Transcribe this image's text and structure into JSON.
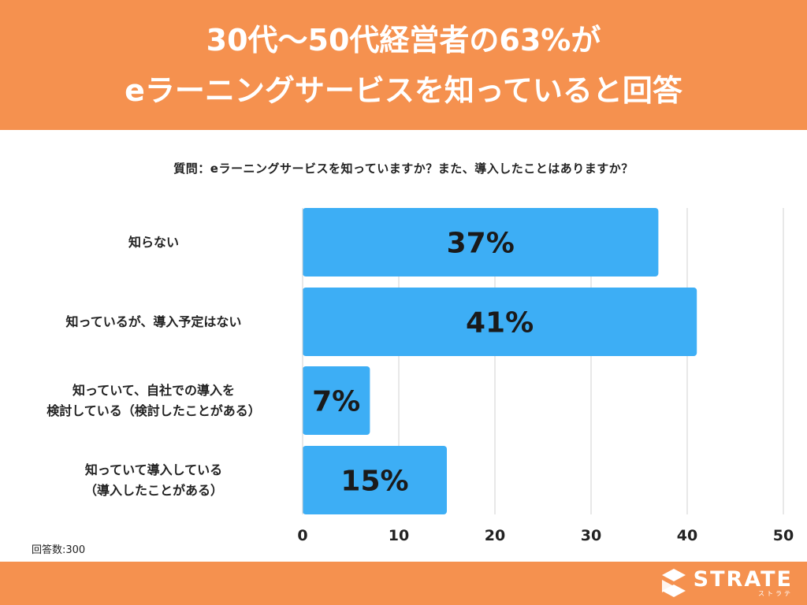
{
  "header": {
    "title_line1": "30代〜50代経営者の63%が",
    "title_line2": "eラーニングサービスを知っていると回答"
  },
  "question": "質問：eラーニングサービスを知っていますか？また、導入したことはありますか？",
  "sample_size": "回答数:300",
  "brand": {
    "name": "STRATE",
    "sub": "ストラテ"
  },
  "colors": {
    "header_bg": "#f5914f",
    "bar": "#3daef5",
    "grid": "#d0d0d0"
  },
  "chart_data": {
    "type": "bar",
    "orientation": "horizontal",
    "title": "",
    "categories": [
      [
        "知らない"
      ],
      [
        "知っているが、導入予定はない"
      ],
      [
        "知っていて、自社での導入を",
        "検討している（検討したことがある）"
      ],
      [
        "知っていて導入している",
        "（導入したことがある）"
      ]
    ],
    "values": [
      37,
      41,
      7,
      15
    ],
    "value_labels": [
      "37%",
      "41%",
      "7%",
      "15%"
    ],
    "xlim": [
      0,
      50
    ],
    "xticks": [
      0,
      10,
      20,
      30,
      40,
      50
    ],
    "xtick_labels": [
      "0",
      "10",
      "20",
      "30",
      "40",
      "50"
    ],
    "grid": true
  }
}
